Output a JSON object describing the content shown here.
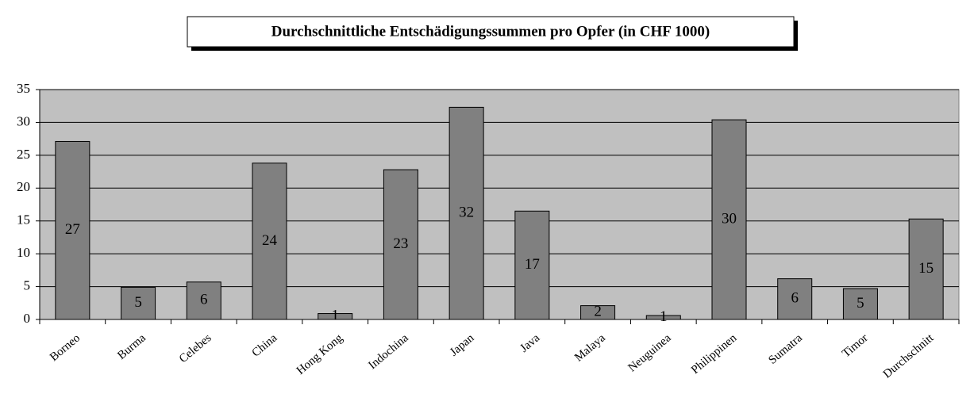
{
  "chart_data": {
    "type": "bar",
    "title": "Durchschnittliche Entschädigungssummen pro Opfer (in CHF 1000)",
    "categories": [
      "Borneo",
      "Burma",
      "Celebes",
      "China",
      "Hong Kong",
      "Indochina",
      "Japan",
      "Java",
      "Malaya",
      "Neuguinea",
      "Philippinen",
      "Sumatra",
      "Timor",
      "Durchschnitt"
    ],
    "values": [
      27.1,
      4.9,
      5.7,
      23.8,
      0.9,
      22.8,
      32.3,
      16.5,
      2.1,
      0.6,
      30.4,
      6.2,
      4.7,
      15.3
    ],
    "value_labels": [
      "27",
      "5",
      "6",
      "24",
      "1",
      "23",
      "32",
      "17",
      "2",
      "1",
      "30",
      "6",
      "5",
      "15"
    ],
    "color": "#808080",
    "ylim": [
      0,
      35
    ],
    "yticks": [
      0,
      5,
      10,
      15,
      20,
      25,
      30,
      35
    ],
    "grid": true
  }
}
